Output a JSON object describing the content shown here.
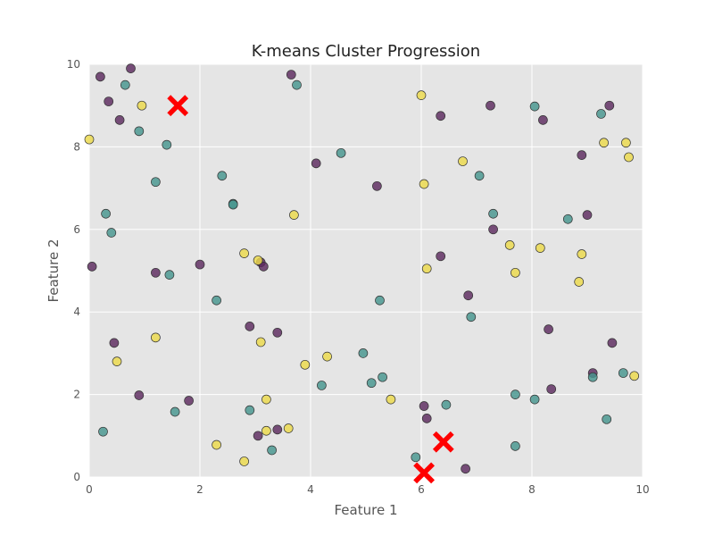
{
  "chart_data": {
    "type": "scatter",
    "title": "K-means Cluster Progression",
    "xlabel": "Feature 1",
    "ylabel": "Feature 2",
    "xlim": [
      0,
      10
    ],
    "ylim": [
      0,
      10
    ],
    "xticks": [
      "0",
      "2",
      "4",
      "6",
      "8",
      "10"
    ],
    "yticks": [
      "0",
      "2",
      "4",
      "6",
      "8",
      "10"
    ],
    "grid": true,
    "background": "#e5e5e5",
    "cluster_colors": {
      "purple": "#5c2a5e",
      "teal": "#45958e",
      "yellow": "#ecd94a"
    },
    "centroid_color": "#ff0000",
    "series": [
      {
        "color_key": "purple",
        "points": [
          [
            0.2,
            9.7
          ],
          [
            0.35,
            9.1
          ],
          [
            0.55,
            8.65
          ],
          [
            0.75,
            9.9
          ],
          [
            0.05,
            5.1
          ],
          [
            1.2,
            4.95
          ],
          [
            2.0,
            5.15
          ],
          [
            0.45,
            3.25
          ],
          [
            0.9,
            1.98
          ],
          [
            1.8,
            1.85
          ],
          [
            3.1,
            5.2
          ],
          [
            3.15,
            5.1
          ],
          [
            2.9,
            3.65
          ],
          [
            3.4,
            3.5
          ],
          [
            3.05,
            1.0
          ],
          [
            3.4,
            1.15
          ],
          [
            3.65,
            9.75
          ],
          [
            4.1,
            7.6
          ],
          [
            5.2,
            7.05
          ],
          [
            6.35,
            8.75
          ],
          [
            6.35,
            5.35
          ],
          [
            6.85,
            4.4
          ],
          [
            6.05,
            1.72
          ],
          [
            6.1,
            1.42
          ],
          [
            6.8,
            0.2
          ],
          [
            7.25,
            9.0
          ],
          [
            7.3,
            6.0
          ],
          [
            8.2,
            8.65
          ],
          [
            8.3,
            3.58
          ],
          [
            8.35,
            2.13
          ],
          [
            8.9,
            7.8
          ],
          [
            9.0,
            6.35
          ],
          [
            9.4,
            9.0
          ],
          [
            9.45,
            3.25
          ],
          [
            9.1,
            2.52
          ]
        ]
      },
      {
        "color_key": "teal",
        "points": [
          [
            0.65,
            9.5
          ],
          [
            0.9,
            8.38
          ],
          [
            1.4,
            8.05
          ],
          [
            1.2,
            7.15
          ],
          [
            0.3,
            6.38
          ],
          [
            0.4,
            5.92
          ],
          [
            1.45,
            4.9
          ],
          [
            2.4,
            7.3
          ],
          [
            2.6,
            6.62
          ],
          [
            2.6,
            6.6
          ],
          [
            2.3,
            4.28
          ],
          [
            1.55,
            1.58
          ],
          [
            0.25,
            1.1
          ],
          [
            2.9,
            1.62
          ],
          [
            3.3,
            0.65
          ],
          [
            3.75,
            9.5
          ],
          [
            4.55,
            7.85
          ],
          [
            5.25,
            4.28
          ],
          [
            4.95,
            3.0
          ],
          [
            5.3,
            2.42
          ],
          [
            5.1,
            2.28
          ],
          [
            4.2,
            2.22
          ],
          [
            6.45,
            1.75
          ],
          [
            5.9,
            0.48
          ],
          [
            7.05,
            7.3
          ],
          [
            7.3,
            6.38
          ],
          [
            6.9,
            3.88
          ],
          [
            8.05,
            8.98
          ],
          [
            8.65,
            6.25
          ],
          [
            9.25,
            8.8
          ],
          [
            7.7,
            2.0
          ],
          [
            8.05,
            1.88
          ],
          [
            7.7,
            0.75
          ],
          [
            9.1,
            2.42
          ],
          [
            9.65,
            2.52
          ],
          [
            9.35,
            1.4
          ]
        ]
      },
      {
        "color_key": "yellow",
        "points": [
          [
            0.0,
            8.18
          ],
          [
            0.95,
            9.0
          ],
          [
            1.2,
            3.38
          ],
          [
            0.5,
            2.8
          ],
          [
            2.8,
            5.42
          ],
          [
            3.05,
            5.25
          ],
          [
            3.1,
            3.27
          ],
          [
            3.7,
            6.35
          ],
          [
            3.9,
            2.72
          ],
          [
            4.3,
            2.92
          ],
          [
            3.2,
            1.88
          ],
          [
            3.2,
            1.12
          ],
          [
            3.6,
            1.18
          ],
          [
            2.3,
            0.78
          ],
          [
            2.8,
            0.38
          ],
          [
            5.45,
            1.88
          ],
          [
            6.0,
            9.25
          ],
          [
            6.05,
            7.1
          ],
          [
            6.1,
            5.05
          ],
          [
            6.75,
            7.65
          ],
          [
            7.6,
            5.62
          ],
          [
            7.7,
            4.95
          ],
          [
            8.15,
            5.55
          ],
          [
            8.85,
            4.73
          ],
          [
            8.9,
            5.4
          ],
          [
            9.3,
            8.1
          ],
          [
            9.7,
            8.1
          ],
          [
            9.75,
            7.75
          ],
          [
            9.85,
            2.45
          ]
        ]
      }
    ],
    "centroids": [
      [
        1.6,
        9.0
      ],
      [
        6.4,
        0.85
      ],
      [
        6.05,
        0.1
      ]
    ]
  }
}
